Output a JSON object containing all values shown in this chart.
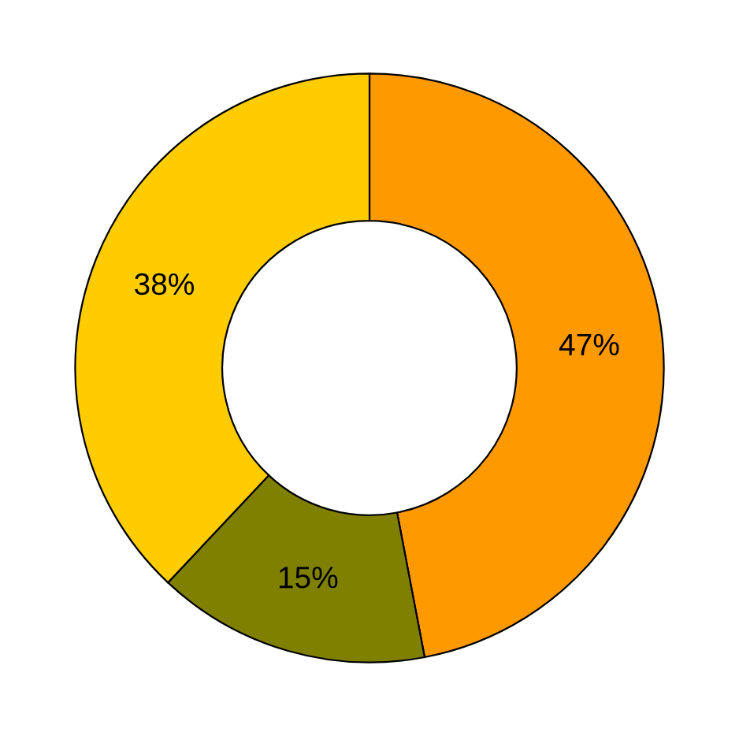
{
  "chart_data": {
    "type": "donut",
    "categories": [
      null,
      null,
      null
    ],
    "values": [
      47,
      15,
      38
    ],
    "colors": [
      "#ff9900",
      "#808000",
      "#ffcc00"
    ],
    "value_labels": [
      "47%",
      "15%",
      "38%"
    ]
  }
}
